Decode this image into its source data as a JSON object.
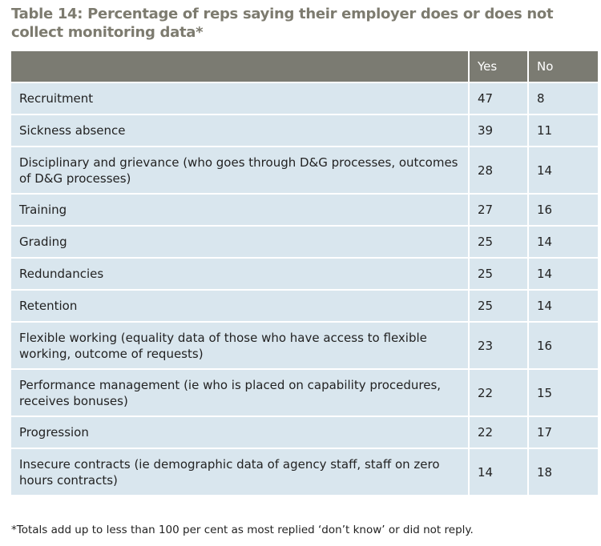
{
  "header": {
    "title": "Table 14: Percentage of reps saying their employer does or does not collect monitoring data*"
  },
  "table": {
    "columns": [
      "Yes",
      "No"
    ],
    "rows": [
      [
        "Recruitment",
        47,
        8
      ],
      [
        "Sickness absence",
        39,
        11
      ],
      [
        "Disciplinary and grievance (who goes through D&G processes, outcomes of D&G processes)",
        28,
        14
      ],
      [
        "Training",
        27,
        16
      ],
      [
        "Grading",
        25,
        14
      ],
      [
        "Redundancies",
        25,
        14
      ],
      [
        "Retention",
        25,
        14
      ],
      [
        "Flexible working (equality data of those who have access to flexible working, outcome of requests)",
        23,
        16
      ],
      [
        "Performance management (ie who is placed on capability procedures, receives bonuses)",
        22,
        15
      ],
      [
        "Progression",
        22,
        17
      ],
      [
        "Insecure contracts (ie demographic data of agency staff, staff on zero hours contracts)",
        14,
        18
      ]
    ]
  },
  "footnote": "*Totals add up to less than 100 per cent as most replied ‘don’t know’ or did not reply."
}
